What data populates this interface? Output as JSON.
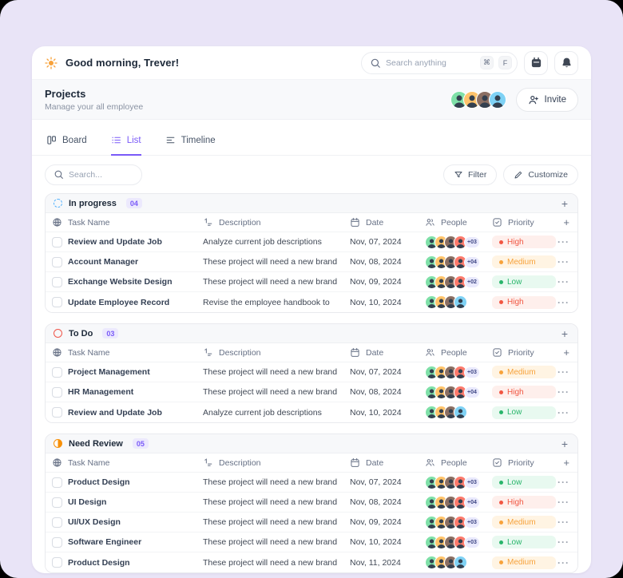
{
  "header": {
    "greeting": "Good morning, Trever!",
    "search_placeholder": "Search anything",
    "shortcuts": [
      "⌘",
      "F"
    ]
  },
  "project_header": {
    "title": "Projects",
    "subtitle": "Manage your all employee",
    "invite_label": "Invite",
    "avatars": [
      "green",
      "amber",
      "dark",
      "blue"
    ]
  },
  "tabs": [
    {
      "label": "Board",
      "active": false
    },
    {
      "label": "List",
      "active": true
    },
    {
      "label": "Timeline",
      "active": false
    }
  ],
  "toolbar": {
    "search_placeholder": "Search...",
    "filter_label": "Filter",
    "customize_label": "Customize"
  },
  "columns": {
    "task": "Task Name",
    "description": "Description",
    "date": "Date",
    "people": "People",
    "priority": "Priority"
  },
  "misc": {
    "plus": "+",
    "menu_dots": "···"
  },
  "theme": {
    "accent_purple": "#7A5AF8",
    "status_in_progress": "#53B1FD",
    "status_todo": "#F0564A",
    "status_need_review": "#F79009",
    "priority_high": "#F15642",
    "priority_medium": "#F7A23B",
    "priority_low": "#29B56B",
    "avatar_colors": {
      "green": "#7FE0A8",
      "amber": "#FFC36B",
      "dark": "#8B6F63",
      "red": "#FC7A6C",
      "blue": "#7FD2F5"
    }
  },
  "sections": [
    {
      "name": "In progress",
      "count": "04",
      "status": "in_progress",
      "rows": [
        {
          "task": "Review and Update Job",
          "description": "Analyze current job descriptions",
          "date": "Nov, 07, 2024",
          "avatars": [
            "green",
            "amber",
            "dark",
            "red"
          ],
          "extra": "+03",
          "priority": "High"
        },
        {
          "task": "Account Manager",
          "description": "These project will need a new brand",
          "date": "Nov, 08, 2024",
          "avatars": [
            "green",
            "amber",
            "dark",
            "red"
          ],
          "extra": "+04",
          "priority": "Medium"
        },
        {
          "task": "Exchange Website Design",
          "description": "These project will need a new brand",
          "date": "Nov, 09, 2024",
          "avatars": [
            "green",
            "amber",
            "dark",
            "red"
          ],
          "extra": "+02",
          "priority": "Low"
        },
        {
          "task": "Update Employee Record",
          "description": "Revise the employee handbook to",
          "date": "Nov, 10, 2024",
          "avatars": [
            "green",
            "amber",
            "dark",
            "blue"
          ],
          "extra": null,
          "priority": "High"
        }
      ]
    },
    {
      "name": "To Do",
      "count": "03",
      "status": "todo",
      "rows": [
        {
          "task": "Project Management",
          "description": "These project will need a new brand",
          "date": "Nov, 07, 2024",
          "avatars": [
            "green",
            "amber",
            "dark",
            "red"
          ],
          "extra": "+03",
          "priority": "Medium"
        },
        {
          "task": "HR Management",
          "description": "These project will need a new brand",
          "date": "Nov, 08, 2024",
          "avatars": [
            "green",
            "amber",
            "dark",
            "red"
          ],
          "extra": "+04",
          "priority": "High"
        },
        {
          "task": "Review and Update Job",
          "description": "Analyze current job descriptions",
          "date": "Nov, 10, 2024",
          "avatars": [
            "green",
            "amber",
            "dark",
            "blue"
          ],
          "extra": null,
          "priority": "Low"
        }
      ]
    },
    {
      "name": "Need Review",
      "count": "05",
      "status": "need_review",
      "rows": [
        {
          "task": "Product Design",
          "description": "These project will need a new brand",
          "date": "Nov, 07, 2024",
          "avatars": [
            "green",
            "amber",
            "dark",
            "red"
          ],
          "extra": "+03",
          "priority": "Low"
        },
        {
          "task": "UI Design",
          "description": "These project will need a new brand",
          "date": "Nov, 08, 2024",
          "avatars": [
            "green",
            "amber",
            "dark",
            "red"
          ],
          "extra": "+04",
          "priority": "High"
        },
        {
          "task": "UI/UX Design",
          "description": "These project will need a new brand",
          "date": "Nov, 09, 2024",
          "avatars": [
            "green",
            "amber",
            "dark",
            "red"
          ],
          "extra": "+03",
          "priority": "Medium"
        },
        {
          "task": "Software Engineer",
          "description": "These project will need a new brand",
          "date": "Nov, 10, 2024",
          "avatars": [
            "green",
            "amber",
            "dark",
            "red"
          ],
          "extra": "+03",
          "priority": "Low"
        },
        {
          "task": "Product Design",
          "description": "These project will need a new brand",
          "date": "Nov, 11, 2024",
          "avatars": [
            "green",
            "amber",
            "dark",
            "blue"
          ],
          "extra": null,
          "priority": "Medium"
        }
      ]
    }
  ]
}
